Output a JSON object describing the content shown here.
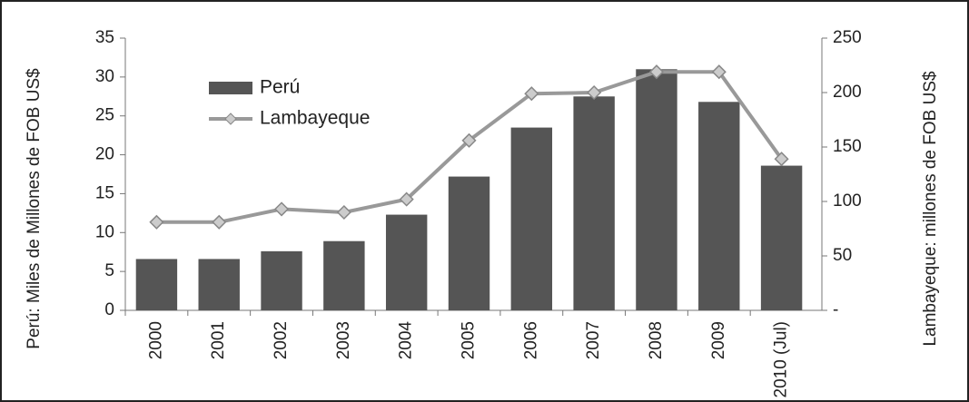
{
  "chart_data": {
    "type": "bar-line",
    "y_label": "Perú: Miles de Millones de FOB US$",
    "y2_label": "Lambayeque: millones de FOB US$",
    "categories": [
      "2000",
      "2001",
      "2002",
      "2003",
      "2004",
      "2005",
      "2006",
      "2007",
      "2008",
      "2009",
      "2010 (Jul)"
    ],
    "series": [
      {
        "name": "Perú",
        "type": "bar",
        "color": "#555555",
        "values": [
          6.6,
          6.6,
          7.6,
          8.9,
          12.3,
          17.2,
          23.5,
          27.5,
          31,
          26.8,
          18.6
        ]
      },
      {
        "name": "Lambayeque",
        "type": "line",
        "axis": "y2",
        "color": "#999999",
        "values": [
          81,
          81,
          93,
          90,
          102,
          156,
          199,
          200,
          219,
          219,
          139
        ]
      }
    ],
    "ylim": [
      0,
      35
    ],
    "yticks": [
      0,
      5,
      10,
      15,
      20,
      25,
      30,
      35
    ],
    "y2lim": [
      0,
      250
    ],
    "y2ticks": [
      {
        "value": 0,
        "label": "-"
      },
      50,
      100,
      150,
      200,
      250
    ],
    "legend": "upper-left"
  }
}
